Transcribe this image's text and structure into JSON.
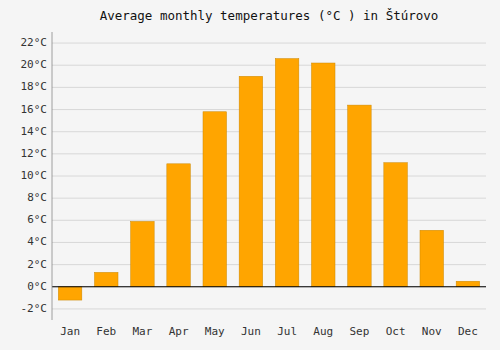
{
  "chart_data": {
    "type": "bar",
    "title": "Average monthly temperatures (°C ) in Štúrovo",
    "categories": [
      "Jan",
      "Feb",
      "Mar",
      "Apr",
      "May",
      "Jun",
      "Jul",
      "Aug",
      "Sep",
      "Oct",
      "Nov",
      "Dec"
    ],
    "values": [
      -1.2,
      1.3,
      5.9,
      11.1,
      15.8,
      19.0,
      20.6,
      20.2,
      16.4,
      11.2,
      5.1,
      0.5
    ],
    "color": "#FFA500",
    "ylim": [
      -3,
      23
    ],
    "yticks": [
      {
        "value": -2,
        "label": "-2°C"
      },
      {
        "value": 0,
        "label": "0°C"
      },
      {
        "value": 2,
        "label": "2°C"
      },
      {
        "value": 4,
        "label": "4°C"
      },
      {
        "value": 6,
        "label": "6°C"
      },
      {
        "value": 8,
        "label": "8°C"
      },
      {
        "value": 10,
        "label": "10°C"
      },
      {
        "value": 12,
        "label": "12°C"
      },
      {
        "value": 14,
        "label": "14°C"
      },
      {
        "value": 16,
        "label": "16°C"
      },
      {
        "value": 18,
        "label": "18°C"
      },
      {
        "value": 20,
        "label": "20°C"
      },
      {
        "value": 22,
        "label": "22°C"
      }
    ],
    "grid": true
  }
}
